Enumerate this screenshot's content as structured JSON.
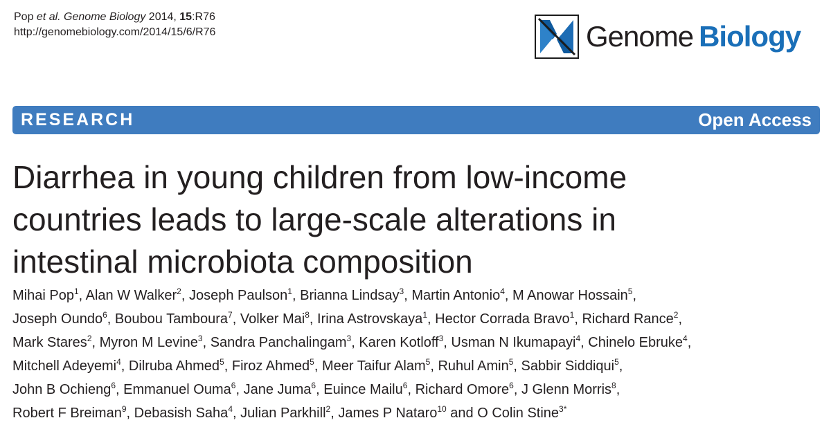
{
  "citation": {
    "authors_prefix": "Pop ",
    "et_al": "et al. Genome Biology",
    "year": " 2014, ",
    "volume": "15",
    "article": ":R76",
    "url": "http://genomebiology.com/2014/15/6/R76"
  },
  "logo": {
    "word1": "Genome",
    "word2": "Biology",
    "colors": {
      "blue": "#1a6fb8",
      "dark": "#231f20"
    }
  },
  "banner": {
    "left": "RESEARCH",
    "right": "Open Access",
    "color": "#3f7cbf"
  },
  "title": {
    "lines": [
      "Diarrhea in young children from low-income",
      "countries leads to large-scale alterations in",
      "intestinal microbiota composition"
    ]
  },
  "authors": {
    "lines": [
      [
        {
          "name": "Mihai Pop",
          "sup": "1",
          "sep": ", "
        },
        {
          "name": "Alan W Walker",
          "sup": "2",
          "sep": ", "
        },
        {
          "name": "Joseph Paulson",
          "sup": "1",
          "sep": ", "
        },
        {
          "name": "Brianna Lindsay",
          "sup": "3",
          "sep": ", "
        },
        {
          "name": "Martin Antonio",
          "sup": "4",
          "sep": ", "
        },
        {
          "name": "M Anowar Hossain",
          "sup": "5",
          "sep": ","
        }
      ],
      [
        {
          "name": "Joseph Oundo",
          "sup": "6",
          "sep": ", "
        },
        {
          "name": "Boubou Tamboura",
          "sup": "7",
          "sep": ", "
        },
        {
          "name": "Volker Mai",
          "sup": "8",
          "sep": ", "
        },
        {
          "name": "Irina Astrovskaya",
          "sup": "1",
          "sep": ", "
        },
        {
          "name": "Hector Corrada Bravo",
          "sup": "1",
          "sep": ", "
        },
        {
          "name": "Richard Rance",
          "sup": "2",
          "sep": ","
        }
      ],
      [
        {
          "name": "Mark Stares",
          "sup": "2",
          "sep": ", "
        },
        {
          "name": "Myron M Levine",
          "sup": "3",
          "sep": ", "
        },
        {
          "name": "Sandra Panchalingam",
          "sup": "3",
          "sep": ", "
        },
        {
          "name": "Karen Kotloff",
          "sup": "3",
          "sep": ", "
        },
        {
          "name": "Usman N Ikumapayi",
          "sup": "4",
          "sep": ", "
        },
        {
          "name": "Chinelo Ebruke",
          "sup": "4",
          "sep": ","
        }
      ],
      [
        {
          "name": "Mitchell Adeyemi",
          "sup": "4",
          "sep": ", "
        },
        {
          "name": "Dilruba Ahmed",
          "sup": "5",
          "sep": ", "
        },
        {
          "name": "Firoz Ahmed",
          "sup": "5",
          "sep": ", "
        },
        {
          "name": "Meer Taifur Alam",
          "sup": "5",
          "sep": ", "
        },
        {
          "name": "Ruhul Amin",
          "sup": "5",
          "sep": ", "
        },
        {
          "name": "Sabbir Siddiqui",
          "sup": "5",
          "sep": ","
        }
      ],
      [
        {
          "name": "John B Ochieng",
          "sup": "6",
          "sep": ", "
        },
        {
          "name": "Emmanuel Ouma",
          "sup": "6",
          "sep": ", "
        },
        {
          "name": "Jane Juma",
          "sup": "6",
          "sep": ", "
        },
        {
          "name": "Euince Mailu",
          "sup": "6",
          "sep": ", "
        },
        {
          "name": "Richard Omore",
          "sup": "6",
          "sep": ", "
        },
        {
          "name": "J Glenn Morris",
          "sup": "8",
          "sep": ","
        }
      ],
      [
        {
          "name": "Robert F Breiman",
          "sup": "9",
          "sep": ", "
        },
        {
          "name": "Debasish Saha",
          "sup": "4",
          "sep": ", "
        },
        {
          "name": "Julian Parkhill",
          "sup": "2",
          "sep": ", "
        },
        {
          "name": "James P Nataro",
          "sup": "10",
          "sep": " and "
        },
        {
          "name": "O Colin Stine",
          "sup": "3*",
          "sep": ""
        }
      ]
    ]
  }
}
